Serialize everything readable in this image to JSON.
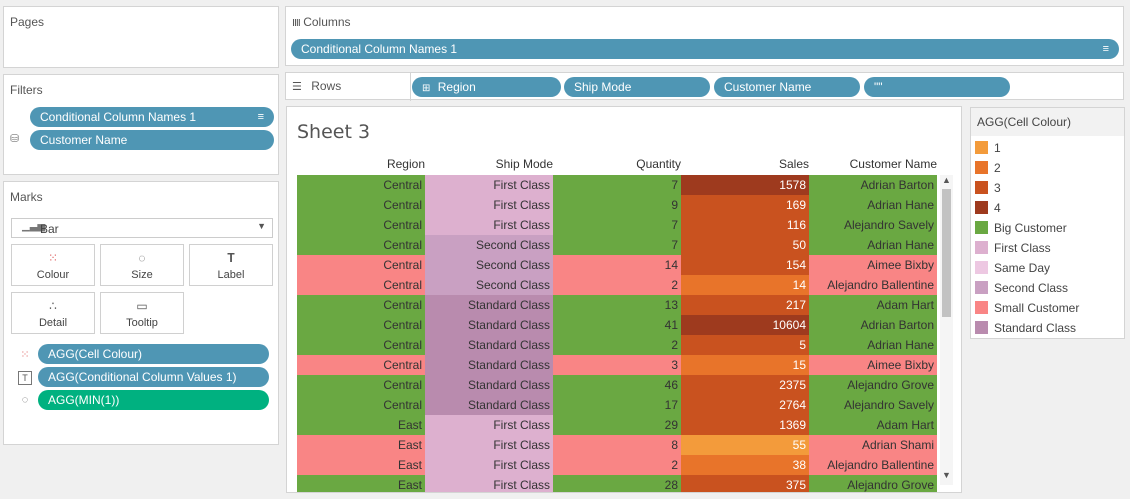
{
  "pages": {
    "title": "Pages"
  },
  "columns": {
    "label": "Columns",
    "pill": "Conditional Column  Names 1"
  },
  "rows": {
    "label": "Rows",
    "pills": [
      "Region",
      "Ship Mode",
      "Customer Name",
      "\"\""
    ]
  },
  "filters": {
    "title": "Filters",
    "pills": [
      "Conditional Column  Names 1",
      "Customer Name"
    ]
  },
  "marks": {
    "title": "Marks",
    "type": "Bar",
    "buttons": [
      "Colour",
      "Size",
      "Label",
      "Detail",
      "Tooltip"
    ],
    "fields": [
      "AGG(Cell Colour)",
      "AGG(Conditional Column  Values 1)",
      "AGG(MIN(1))"
    ]
  },
  "sheet": {
    "title": "Sheet 3",
    "headers": [
      "Region",
      "Ship Mode",
      "Quantity",
      "Sales",
      "Customer Name"
    ],
    "rows": [
      [
        "Central",
        "First Class",
        "7",
        "1578",
        "Adrian Barton"
      ],
      [
        "Central",
        "First Class",
        "9",
        "169",
        "Adrian Hane"
      ],
      [
        "Central",
        "First Class",
        "7",
        "116",
        "Alejandro Savely"
      ],
      [
        "Central",
        "Second Class",
        "7",
        "50",
        "Adrian Hane"
      ],
      [
        "Central",
        "Second Class",
        "14",
        "154",
        "Aimee Bixby"
      ],
      [
        "Central",
        "Second Class",
        "2",
        "14",
        "Alejandro Ballentine"
      ],
      [
        "Central",
        "Standard Class",
        "13",
        "217",
        "Adam Hart"
      ],
      [
        "Central",
        "Standard Class",
        "41",
        "10604",
        "Adrian Barton"
      ],
      [
        "Central",
        "Standard Class",
        "2",
        "5",
        "Adrian Hane"
      ],
      [
        "Central",
        "Standard Class",
        "3",
        "15",
        "Aimee Bixby"
      ],
      [
        "Central",
        "Standard Class",
        "46",
        "2375",
        "Alejandro Grove"
      ],
      [
        "Central",
        "Standard Class",
        "17",
        "2764",
        "Alejandro Savely"
      ],
      [
        "East",
        "First Class",
        "29",
        "1369",
        "Adam Hart"
      ],
      [
        "East",
        "First Class",
        "8",
        "55",
        "Adrian Shami"
      ],
      [
        "East",
        "First Class",
        "2",
        "38",
        "Alejandro Ballentine"
      ],
      [
        "East",
        "First Class",
        "28",
        "375",
        "Alejandro Grove"
      ]
    ],
    "row_customer_type": [
      "big",
      "big",
      "big",
      "big",
      "small",
      "small",
      "big",
      "big",
      "big",
      "small",
      "big",
      "big",
      "big",
      "small",
      "small",
      "big"
    ],
    "sales_level": [
      4,
      3,
      3,
      3,
      3,
      2,
      3,
      4,
      3,
      2,
      3,
      3,
      3,
      1,
      2,
      3
    ]
  },
  "legend": {
    "title": "AGG(Cell Colour)",
    "items": [
      {
        "label": "1",
        "color": "#f39b3b"
      },
      {
        "label": "2",
        "color": "#e8742a"
      },
      {
        "label": "3",
        "color": "#c9521f"
      },
      {
        "label": "4",
        "color": "#9e3a1e"
      },
      {
        "label": "Big Customer",
        "color": "#6aa842"
      },
      {
        "label": "First Class",
        "color": "#ddb0cf"
      },
      {
        "label": "Same Day",
        "color": "#edc8e2"
      },
      {
        "label": "Second Class",
        "color": "#c9a0c2"
      },
      {
        "label": "Small Customer",
        "color": "#f98585"
      },
      {
        "label": "Standard Class",
        "color": "#b98bae"
      }
    ]
  }
}
